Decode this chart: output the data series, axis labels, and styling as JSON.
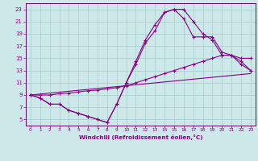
{
  "xlabel": "Windchill (Refroidissement éolien,°C)",
  "background_color": "#cde8e8",
  "grid_color": "#a8cccc",
  "line_color": "#880088",
  "spine_color": "#660066",
  "xlim": [
    -0.5,
    23.5
  ],
  "ylim": [
    4,
    24
  ],
  "xticks": [
    0,
    1,
    2,
    3,
    4,
    5,
    6,
    7,
    8,
    9,
    10,
    11,
    12,
    13,
    14,
    15,
    16,
    17,
    18,
    19,
    20,
    21,
    22,
    23
  ],
  "yticks": [
    5,
    7,
    9,
    11,
    13,
    15,
    17,
    19,
    21,
    23
  ],
  "lines": [
    {
      "x": [
        0,
        1,
        2,
        3,
        4,
        5,
        6,
        7,
        8,
        9,
        10,
        11,
        12,
        13,
        14,
        15,
        16,
        17,
        18,
        19,
        20,
        21,
        22,
        23
      ],
      "y": [
        9,
        8.5,
        7.5,
        7.5,
        6.5,
        6.0,
        5.5,
        5.0,
        4.5,
        7.5,
        11.0,
        14.5,
        18.0,
        20.5,
        22.5,
        23.0,
        23.0,
        21.0,
        19.0,
        18.0,
        15.5,
        15.5,
        14.0,
        13.0
      ],
      "marker": "+"
    },
    {
      "x": [
        0,
        1,
        2,
        3,
        4,
        5,
        6,
        7,
        8,
        9,
        10,
        11,
        12,
        13,
        14,
        15,
        16,
        17,
        18,
        19,
        20,
        21,
        22,
        23
      ],
      "y": [
        9,
        8.5,
        7.5,
        7.5,
        6.5,
        6.0,
        5.5,
        5.0,
        4.5,
        7.5,
        11.0,
        14.0,
        17.5,
        19.5,
        22.5,
        23.0,
        21.5,
        18.5,
        18.5,
        18.5,
        16.0,
        15.5,
        14.5,
        13.0
      ],
      "marker": "+"
    },
    {
      "x": [
        0,
        1,
        2,
        3,
        4,
        5,
        6,
        7,
        8,
        9,
        10,
        11,
        12,
        13,
        14,
        15,
        16,
        17,
        18,
        19,
        20,
        21,
        22,
        23
      ],
      "y": [
        9,
        9.0,
        9.0,
        9.2,
        9.3,
        9.5,
        9.7,
        9.8,
        10.0,
        10.2,
        10.5,
        11.0,
        11.5,
        12.0,
        12.5,
        13.0,
        13.5,
        14.0,
        14.5,
        15.0,
        15.5,
        15.5,
        15.0,
        15.0
      ],
      "marker": "+"
    },
    {
      "x": [
        0,
        23
      ],
      "y": [
        9,
        12.5
      ],
      "marker": null
    }
  ]
}
